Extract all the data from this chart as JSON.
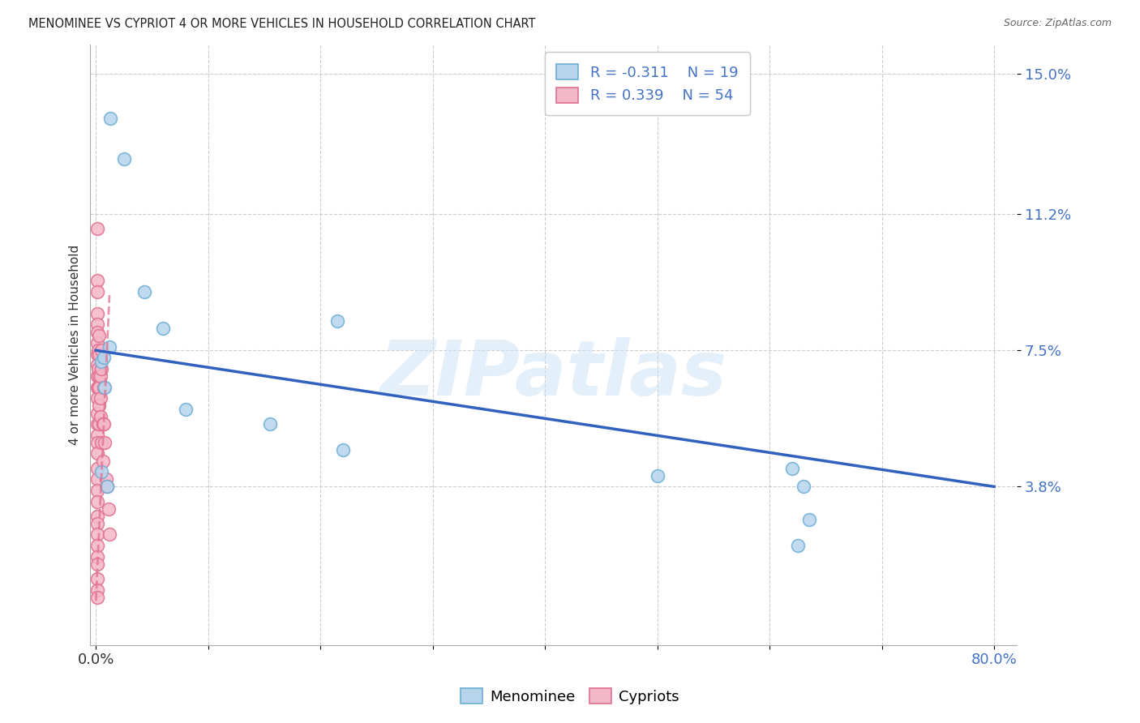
{
  "title": "MENOMINEE VS CYPRIOT 4 OR MORE VEHICLES IN HOUSEHOLD CORRELATION CHART",
  "source": "Source: ZipAtlas.com",
  "ylabel": "4 or more Vehicles in Household",
  "xlim": [
    -0.005,
    0.82
  ],
  "ylim": [
    -0.005,
    0.158
  ],
  "xticks": [
    0.0,
    0.1,
    0.2,
    0.3,
    0.4,
    0.5,
    0.6,
    0.7,
    0.8
  ],
  "xticklabels": [
    "0.0%",
    "",
    "",
    "",
    "",
    "",
    "",
    "",
    "80.0%"
  ],
  "ytick_positions": [
    0.038,
    0.075,
    0.112,
    0.15
  ],
  "ytick_labels": [
    "3.8%",
    "7.5%",
    "11.2%",
    "15.0%"
  ],
  "legend_r1": "-0.311",
  "legend_n1": "19",
  "legend_r2": "0.339",
  "legend_n2": "54",
  "menominee_facecolor": "#b8d4ed",
  "menominee_edgecolor": "#6aaed6",
  "cypriot_facecolor": "#f5b8c8",
  "cypriot_edgecolor": "#e07090",
  "trendline_blue": "#3060c0",
  "trendline_pink": "#e07090",
  "watermark": "ZIPatlas",
  "menominee_x": [
    0.013,
    0.025,
    0.043,
    0.012,
    0.005,
    0.007,
    0.008,
    0.005,
    0.01,
    0.06,
    0.08,
    0.155,
    0.22,
    0.215,
    0.5,
    0.63,
    0.62,
    0.635,
    0.625
  ],
  "menominee_y": [
    0.138,
    0.127,
    0.091,
    0.076,
    0.072,
    0.073,
    0.065,
    0.042,
    0.038,
    0.081,
    0.059,
    0.055,
    0.048,
    0.083,
    0.041,
    0.038,
    0.043,
    0.029,
    0.022
  ],
  "cypriot_x": [
    0.001,
    0.001,
    0.001,
    0.001,
    0.001,
    0.001,
    0.001,
    0.001,
    0.001,
    0.001,
    0.001,
    0.001,
    0.001,
    0.001,
    0.001,
    0.001,
    0.001,
    0.001,
    0.001,
    0.001,
    0.001,
    0.001,
    0.001,
    0.001,
    0.001,
    0.001,
    0.001,
    0.001,
    0.001,
    0.001,
    0.002,
    0.002,
    0.002,
    0.003,
    0.003,
    0.003,
    0.003,
    0.003,
    0.003,
    0.004,
    0.004,
    0.004,
    0.005,
    0.005,
    0.005,
    0.006,
    0.006,
    0.007,
    0.007,
    0.008,
    0.009,
    0.01,
    0.011,
    0.012
  ],
  "cypriot_y": [
    0.108,
    0.094,
    0.091,
    0.085,
    0.082,
    0.08,
    0.077,
    0.074,
    0.071,
    0.068,
    0.065,
    0.062,
    0.058,
    0.055,
    0.052,
    0.05,
    0.047,
    0.043,
    0.04,
    0.037,
    0.034,
    0.03,
    0.028,
    0.025,
    0.022,
    0.019,
    0.017,
    0.013,
    0.01,
    0.008,
    0.075,
    0.07,
    0.065,
    0.079,
    0.074,
    0.068,
    0.065,
    0.06,
    0.055,
    0.068,
    0.062,
    0.057,
    0.075,
    0.07,
    0.05,
    0.055,
    0.045,
    0.065,
    0.055,
    0.05,
    0.04,
    0.038,
    0.032,
    0.025
  ],
  "menominee_trendline_x": [
    0.0,
    0.8
  ],
  "menominee_trendline_y": [
    0.075,
    0.038
  ],
  "cypriot_trendline_x": [
    0.0,
    0.012
  ],
  "cypriot_trendline_y": [
    0.007,
    0.09
  ]
}
